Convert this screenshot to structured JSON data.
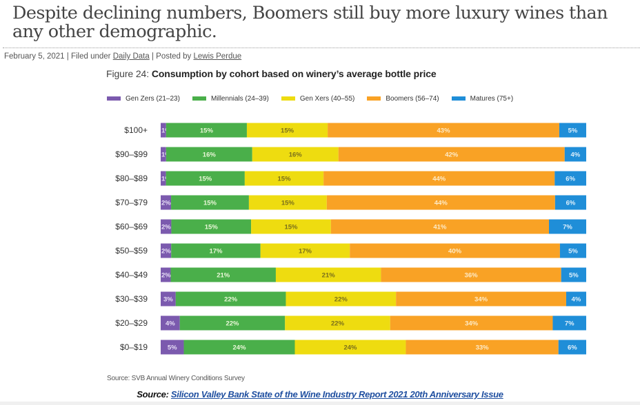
{
  "article": {
    "headline": "Despite declining numbers, Boomers still buy more luxury wines than any other demographic.",
    "date": "February 5, 2021",
    "filed_prefix": " | Filed under ",
    "category": "Daily Data",
    "posted_prefix": " | Posted by ",
    "author": "Lewis Perdue"
  },
  "figure": {
    "number_label": "Figure 24: ",
    "description": "Consumption by cohort based on winery’s average bottle price",
    "source_note": "Source: SVB Annual Winery Conditions Survey"
  },
  "footer": {
    "source_label": "Source: ",
    "source_link_text": "Silicon Valley Bank State of the Wine Industry Report 2021 20th Anniversary Issue"
  },
  "chart_data": {
    "type": "bar",
    "orientation": "horizontal",
    "stacked": true,
    "normalized": true,
    "title": "Figure 24: Consumption by cohort based on winery’s average bottle price",
    "xlabel": "",
    "ylabel": "",
    "legend_position": "top",
    "grid": false,
    "categories": [
      "$100+",
      "$90–$99",
      "$80–$89",
      "$70–$79",
      "$60–$69",
      "$50–$59",
      "$40–$49",
      "$30–$39",
      "$20–$29",
      "$0–$19"
    ],
    "series": [
      {
        "name": "Gen Zers (21–23)",
        "color": "#7b5aae",
        "label_color": "#e6ddf5",
        "values": [
          1,
          1,
          1,
          2,
          2,
          2,
          2,
          3,
          4,
          5
        ]
      },
      {
        "name": "Millennials (24–39)",
        "color": "#4aaf4a",
        "label_color": "#eaf7d8",
        "values": [
          15,
          16,
          15,
          15,
          15,
          17,
          21,
          22,
          22,
          24
        ]
      },
      {
        "name": "Gen Xers (40–55)",
        "color": "#eedc10",
        "label_color": "#7a6f1c",
        "values": [
          15,
          16,
          15,
          15,
          15,
          17,
          21,
          22,
          22,
          24
        ]
      },
      {
        "name": "Boomers (56–74)",
        "color": "#f9a225",
        "label_color": "#fdebc8",
        "values": [
          43,
          42,
          44,
          44,
          41,
          40,
          36,
          34,
          34,
          33
        ]
      },
      {
        "name": "Matures (75+)",
        "color": "#1f8ed8",
        "label_color": "#e0f0fb",
        "values": [
          5,
          4,
          6,
          6,
          7,
          5,
          5,
          4,
          7,
          6
        ]
      }
    ],
    "value_suffix": "%",
    "source": "Source: SVB Annual Winery Conditions Survey"
  }
}
